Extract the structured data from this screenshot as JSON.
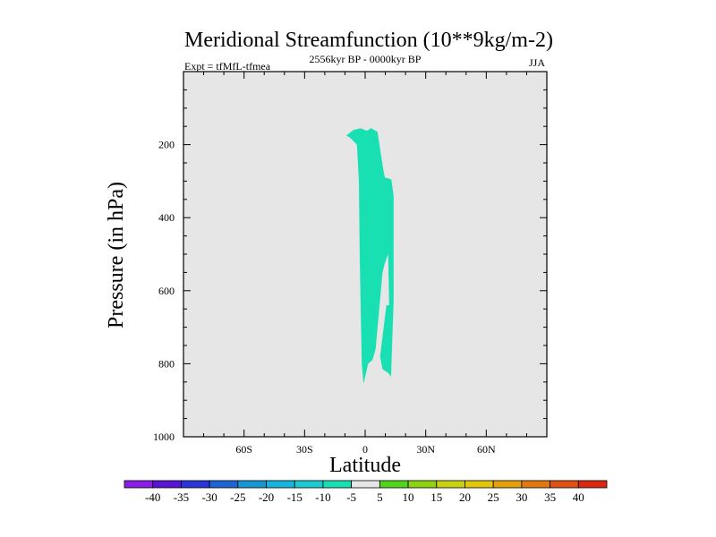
{
  "chart_data": {
    "type": "heatmap",
    "title": "Meridional Streamfunction (10**9kg/m-2)",
    "subtitle_left": "Expt = tfMfL-tfmea",
    "subtitle_center": "2556kyr BP - 0000kyr BP",
    "subtitle_right": "JJA",
    "xlabel": "Latitude",
    "ylabel": "Pressure (in hPa)",
    "xlim": [
      -90,
      90
    ],
    "ylim": [
      0,
      1000
    ],
    "y_inverted": true,
    "xticks": [
      {
        "value": -60,
        "label": "60S"
      },
      {
        "value": -30,
        "label": "30S"
      },
      {
        "value": 0,
        "label": "0"
      },
      {
        "value": 30,
        "label": "30N"
      },
      {
        "value": 60,
        "label": "60N"
      }
    ],
    "yticks": [
      {
        "value": 200,
        "label": "200"
      },
      {
        "value": 400,
        "label": "400"
      },
      {
        "value": 600,
        "label": "600"
      },
      {
        "value": 800,
        "label": "800"
      },
      {
        "value": 1000,
        "label": "1000"
      }
    ],
    "background_color": "#e6e6e6",
    "regions": [
      {
        "name": "-10 to -5",
        "color": "#19e0b2",
        "points": [
          [
            -9.3,
            175
          ],
          [
            -5.8,
            160
          ],
          [
            -2.2,
            155
          ],
          [
            0.9,
            162
          ],
          [
            2.9,
            155
          ],
          [
            6.1,
            165
          ],
          [
            7.1,
            200
          ],
          [
            8.6,
            255
          ],
          [
            9.7,
            290
          ],
          [
            13,
            295
          ],
          [
            14.1,
            340
          ],
          [
            14.1,
            575
          ],
          [
            14.1,
            630
          ],
          [
            12.8,
            835
          ],
          [
            11.4,
            825
          ],
          [
            8.6,
            815
          ],
          [
            7.4,
            780
          ],
          [
            10.5,
            640
          ],
          [
            11.9,
            640
          ],
          [
            11.4,
            500
          ],
          [
            9.7,
            525
          ],
          [
            8.6,
            550
          ],
          [
            5.2,
            760
          ],
          [
            3.6,
            790
          ],
          [
            1.5,
            800
          ],
          [
            -0.8,
            855
          ],
          [
            -1.7,
            800
          ],
          [
            -2.2,
            650
          ],
          [
            -2.7,
            500
          ],
          [
            -3.1,
            300
          ],
          [
            -4.1,
            200
          ],
          [
            -7.3,
            182
          ]
        ]
      }
    ],
    "colorbar": {
      "labels": [
        "-40",
        "-35",
        "-30",
        "-25",
        "-20",
        "-15",
        "-10",
        "-5",
        "5",
        "10",
        "15",
        "20",
        "25",
        "30",
        "35",
        "40"
      ],
      "colors": [
        "#8a1ee6",
        "#5a14d6",
        "#2a36dc",
        "#1e64d6",
        "#1696d2",
        "#14b4dc",
        "#1ccad2",
        "#19e0b2",
        "#e6e6e6",
        "#52d41e",
        "#8ed210",
        "#c8d212",
        "#e2c60e",
        "#e6a00c",
        "#e27810",
        "#de5014",
        "#dc2810"
      ]
    }
  }
}
